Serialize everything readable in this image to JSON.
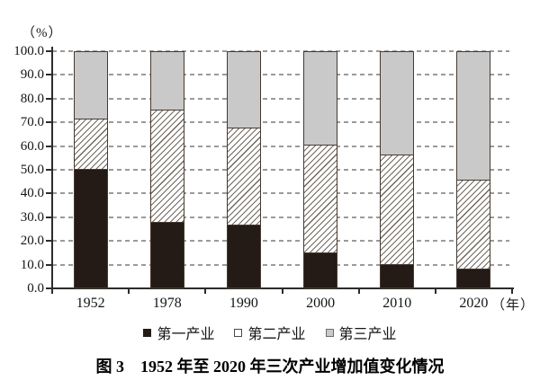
{
  "chart_data": {
    "type": "bar",
    "stacked": true,
    "caption": "图 3　1952 年至 2020 年三次产业增加值变化情况",
    "y_unit": "（%）",
    "x_unit": "（年）",
    "ylim": [
      0,
      100
    ],
    "ytick_step": 10,
    "ytick_labels": [
      "0.0",
      "10.0",
      "20.0",
      "30.0",
      "40.0",
      "50.0",
      "60.0",
      "70.0",
      "80.0",
      "90.0",
      "100.0"
    ],
    "grid": "dashed-horizontal",
    "legend_position": "bottom-center",
    "categories": [
      "1952",
      "1978",
      "1990",
      "2000",
      "2010",
      "2020"
    ],
    "series": [
      {
        "name": "第一产业",
        "pattern": "solid",
        "color": "#241b16",
        "values": [
          50.5,
          27.7,
          26.6,
          14.7,
          9.6,
          7.7
        ]
      },
      {
        "name": "第二产业",
        "pattern": "diagonal-hatch",
        "color": "#ffffff",
        "hatch_color": "#6f675f",
        "values": [
          20.9,
          47.7,
          41.0,
          45.5,
          46.7,
          37.8
        ]
      },
      {
        "name": "第三产业",
        "pattern": "solid",
        "color": "#c9c9c9",
        "values": [
          28.6,
          24.6,
          32.4,
          39.8,
          43.7,
          54.5
        ]
      }
    ],
    "colors": {
      "bar_border": "#463a31",
      "gridline": "#9a9a9a",
      "axis": "#2e2c2a"
    }
  }
}
